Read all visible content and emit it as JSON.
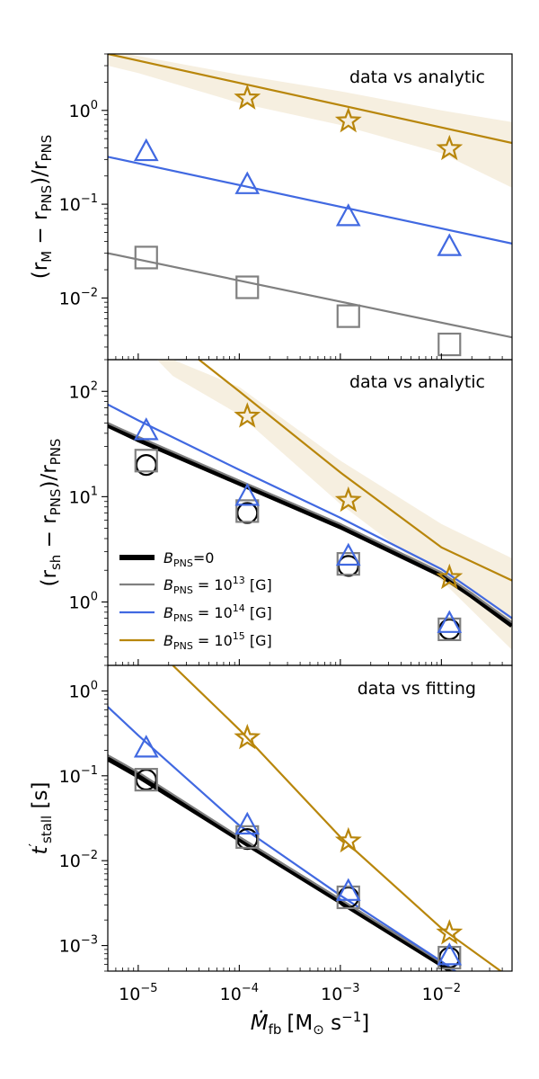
{
  "colors": {
    "b0": "#000000",
    "b13": "#808080",
    "b14": "#4169e1",
    "b15": "#b8860b",
    "band": "#f5ecda"
  },
  "x_axis": {
    "label_main": "Ṁ",
    "label_sub": "fb",
    "label_units_pre": "[M",
    "label_units_sub": "⊙",
    "label_units_post": " s",
    "label_units_exp": "−1",
    "label_units_end": "]",
    "ticks": [
      {
        "value": 1e-05,
        "base": "10",
        "exp": "−5"
      },
      {
        "value": 0.0001,
        "base": "10",
        "exp": "−4"
      },
      {
        "value": 0.001,
        "base": "10",
        "exp": "−3"
      },
      {
        "value": 0.01,
        "base": "10",
        "exp": "−2"
      }
    ],
    "range": [
      5e-06,
      0.05
    ]
  },
  "legend": {
    "b0": {
      "sym": "B",
      "sub": "PNS",
      "rest": "=0"
    },
    "b13": {
      "sym": "B",
      "sub": "PNS",
      "rest": " = 10",
      "exp": "13",
      "unit": " [G]"
    },
    "b14": {
      "sym": "B",
      "sub": "PNS",
      "rest": " = 10",
      "exp": "14",
      "unit": " [G]"
    },
    "b15": {
      "sym": "B",
      "sub": "PNS",
      "rest": " = 10",
      "exp": "15",
      "unit": " [G]"
    }
  },
  "chart_data": [
    {
      "type": "scatter",
      "panel": "top",
      "annotation": "data vs analytic",
      "ylabel": {
        "pre": "(r",
        "sub1": "M",
        "mid": " − r",
        "sub2": "PNS",
        "post": ")/r",
        "sub3": "PNS"
      },
      "ylim": [
        0.0022,
        4.0
      ],
      "yticks": [
        {
          "value": 0.01,
          "base": "10",
          "exp": "−2"
        },
        {
          "value": 0.1,
          "base": "10",
          "exp": "−1"
        },
        {
          "value": 1,
          "base": "10",
          "exp": "0"
        }
      ],
      "series": [
        {
          "name": "B_PNS = 10^13 [G]",
          "key": "b13",
          "marker": "square",
          "x": [
            1.2e-05,
            0.00012,
            0.0012,
            0.012
          ],
          "y": [
            0.027,
            0.013,
            0.0064,
            0.0032
          ],
          "fit": {
            "x": [
              5e-06,
              0.05
            ],
            "y": [
              0.03,
              0.0038
            ]
          }
        },
        {
          "name": "B_PNS = 10^14 [G]",
          "key": "b14",
          "marker": "triangle",
          "x": [
            1.2e-05,
            0.00012,
            0.0012,
            0.012
          ],
          "y": [
            0.36,
            0.16,
            0.073,
            0.035
          ],
          "fit": {
            "x": [
              5e-06,
              0.05
            ],
            "y": [
              0.32,
              0.038
            ]
          }
        },
        {
          "name": "B_PNS = 10^15 [G]",
          "key": "b15",
          "marker": "star",
          "x": [
            1.2e-05,
            0.00012,
            0.0012,
            0.012
          ],
          "y": [
            null,
            1.35,
            0.77,
            0.39
          ],
          "fit": {
            "x": [
              5e-06,
              0.05
            ],
            "y": [
              4.0,
              0.45
            ]
          },
          "band": {
            "x": [
              5e-06,
              1e-05,
              0.0001,
              0.001,
              0.01,
              0.05
            ],
            "upper": [
              4.5,
              3.8,
              2.4,
              1.6,
              1.0,
              0.75
            ],
            "lower": [
              3.0,
              2.5,
              1.2,
              0.7,
              0.35,
              0.15
            ]
          }
        }
      ]
    },
    {
      "type": "scatter",
      "panel": "middle",
      "annotation": "data vs analytic",
      "ylabel": {
        "pre": "(r",
        "sub1": "sh",
        "mid": " − r",
        "sub2": "PNS",
        "post": ")/r",
        "sub3": "PNS"
      },
      "ylim": [
        0.25,
        200
      ],
      "yticks": [
        {
          "value": 1,
          "base": "10",
          "exp": "0"
        },
        {
          "value": 10,
          "base": "10",
          "exp": "1"
        },
        {
          "value": 100,
          "base": "10",
          "exp": "2"
        }
      ],
      "series": [
        {
          "name": "B_PNS=0",
          "key": "b0",
          "marker": "circle",
          "x": [
            1.2e-05,
            0.00012,
            0.0012,
            0.012
          ],
          "y": [
            20.0,
            7.0,
            2.2,
            0.55
          ],
          "fit": {
            "x": [
              5e-06,
              1e-05,
              0.0001,
              0.001,
              0.01,
              0.02,
              0.05
            ],
            "y": [
              48,
              35,
              13.5,
              5.2,
              1.8,
              1.15,
              0.6
            ]
          }
        },
        {
          "name": "B_PNS = 10^13 [G]",
          "key": "b13",
          "marker": "square",
          "x": [
            1.2e-05,
            0.00012,
            0.0012,
            0.012
          ],
          "y": [
            22.0,
            7.3,
            2.3,
            0.55
          ],
          "fit": {
            "x": [
              5e-06,
              1e-05,
              0.0001,
              0.001,
              0.01,
              0.02,
              0.05
            ],
            "y": [
              50,
              37,
              14.2,
              5.5,
              1.9,
              1.2,
              0.64
            ]
          }
        },
        {
          "name": "B_PNS = 10^14 [G]",
          "key": "b14",
          "marker": "triangle",
          "x": [
            1.2e-05,
            0.00012,
            0.0012,
            0.012
          ],
          "y": [
            42.0,
            10.0,
            2.7,
            0.62
          ],
          "fit": {
            "x": [
              5e-06,
              1e-05,
              0.0001,
              0.001,
              0.01,
              0.02,
              0.05
            ],
            "y": [
              75,
              53,
              18,
              6.3,
              2.05,
              1.3,
              0.7
            ]
          }
        },
        {
          "name": "B_PNS = 10^15 [G]",
          "key": "b15",
          "marker": "star",
          "x": [
            1.2e-05,
            0.00012,
            0.0012,
            0.012
          ],
          "y": [
            null,
            58.0,
            9.2,
            1.7
          ],
          "fit": {
            "x": [
              5e-06,
              4e-05,
              0.0001,
              0.001,
              0.01,
              0.05
            ],
            "y": [
              600,
              200,
              100,
              17,
              3.3,
              1.6
            ]
          },
          "band": {
            "x": [
              5e-06,
              2.2e-05,
              0.0001,
              0.001,
              0.01,
              0.05
            ],
            "upper": [
              900,
              200,
              110,
              22,
              5.5,
              2.6
            ],
            "lower": [
              600,
              140,
              60,
              8.5,
              1.6,
              0.35
            ]
          }
        }
      ]
    },
    {
      "type": "scatter",
      "panel": "bottom",
      "annotation": "data vs fitting",
      "ylabel": {
        "pre": "t",
        "prime": "′",
        "sub1": "stall",
        "post": " [s]"
      },
      "ylim": [
        0.0005,
        2.0
      ],
      "yticks": [
        {
          "value": 0.001,
          "base": "10",
          "exp": "−3"
        },
        {
          "value": 0.01,
          "base": "10",
          "exp": "−2"
        },
        {
          "value": 0.1,
          "base": "10",
          "exp": "−1"
        },
        {
          "value": 1,
          "base": "10",
          "exp": "0"
        }
      ],
      "series": [
        {
          "name": "B_PNS=0",
          "key": "b0",
          "marker": "circle",
          "x": [
            1.2e-05,
            0.00012,
            0.0012,
            0.012
          ],
          "y": [
            0.09,
            0.018,
            0.0037,
            0.00072
          ],
          "fit": {
            "x": [
              5e-06,
              1e-05,
              0.0001,
              0.001,
              0.01,
              0.03
            ],
            "y": [
              0.16,
              0.1,
              0.018,
              0.0033,
              0.0006,
              0.00025
            ]
          }
        },
        {
          "name": "B_PNS = 10^13 [G]",
          "key": "b13",
          "marker": "square",
          "x": [
            1.2e-05,
            0.00012,
            0.0012,
            0.012
          ],
          "y": [
            0.09,
            0.019,
            0.0037,
            0.00072
          ],
          "fit": {
            "x": [
              5e-06,
              1e-05,
              0.0001,
              0.001,
              0.01,
              0.03
            ],
            "y": [
              0.175,
              0.11,
              0.019,
              0.0035,
              0.00063,
              0.00026
            ]
          }
        },
        {
          "name": "B_PNS = 10^14 [G]",
          "key": "b14",
          "marker": "triangle",
          "x": [
            1.2e-05,
            0.00012,
            0.0012,
            0.012
          ],
          "y": [
            0.21,
            0.026,
            0.0043,
            0.00075
          ],
          "fit": {
            "x": [
              5e-06,
              1e-05,
              0.0001,
              0.001,
              0.01,
              0.03
            ],
            "y": [
              0.65,
              0.3,
              0.026,
              0.0039,
              0.00065,
              0.00026
            ]
          }
        },
        {
          "name": "B_PNS = 10^15 [G]",
          "key": "b15",
          "marker": "star",
          "x": [
            1.2e-05,
            0.00012,
            0.0012,
            0.012
          ],
          "y": [
            null,
            0.28,
            0.017,
            0.0014
          ],
          "fit": {
            "x": [
              2.2e-05,
              0.0001,
              0.001,
              0.01,
              0.05
            ],
            "y": [
              2.0,
              0.35,
              0.019,
              0.0016,
              0.0004
            ]
          }
        }
      ]
    }
  ]
}
